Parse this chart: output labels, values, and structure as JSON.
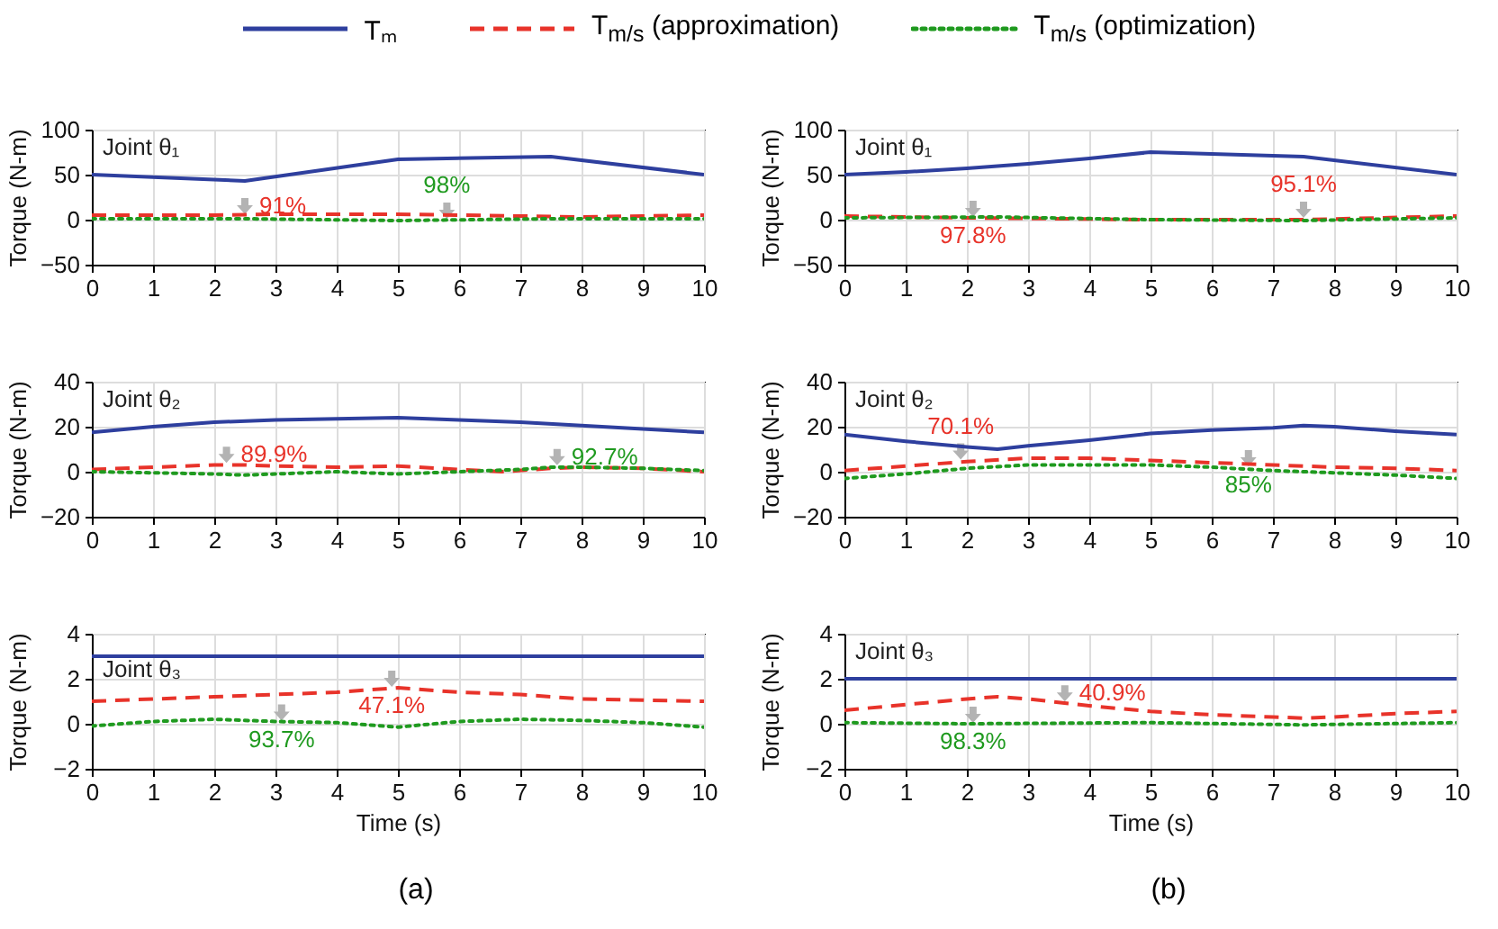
{
  "chart_data": [
    {
      "type": "line",
      "title": "Joint θ₁",
      "ylabel": "Torque (N-m)",
      "xlim": [
        0,
        10
      ],
      "xticks": [
        0,
        1,
        2,
        3,
        4,
        5,
        6,
        7,
        8,
        9,
        10
      ],
      "ylim": [
        -50,
        100
      ],
      "yticks": [
        -50,
        0,
        50,
        100
      ],
      "grid": true,
      "legend": "top",
      "series": [
        {
          "name": "Tₘ",
          "color": "#2e3f9e",
          "line_style": "solid",
          "x": [
            0,
            2.5,
            5,
            7.5,
            10
          ],
          "values": [
            50,
            43,
            67,
            70,
            50
          ]
        },
        {
          "name": "T$_{m/s}$ (approximation)",
          "color": "#e8332a",
          "line_style": "dashed",
          "x": [
            0,
            1,
            2,
            3,
            4,
            5,
            6,
            7,
            8,
            9,
            10
          ],
          "values": [
            5,
            5,
            5,
            6,
            6,
            6,
            5,
            4,
            3,
            4,
            5
          ]
        },
        {
          "name": "T$_{m/s}$ (optimization)",
          "color": "#1f9a1f",
          "line_style": "dotted",
          "x": [
            0,
            2.5,
            5,
            7.5,
            10
          ],
          "values": [
            1,
            1,
            -1,
            1,
            1
          ]
        }
      ],
      "annotations": [
        {
          "text": "91%",
          "x": 2.5,
          "y": 5
        },
        {
          "text": "98%",
          "x": 5.8,
          "y": 0
        }
      ]
    },
    {
      "type": "line",
      "title": "Joint θ₁",
      "ylabel": "Torque (N-m)",
      "xlim": [
        0,
        10
      ],
      "xticks": [
        0,
        1,
        2,
        3,
        4,
        5,
        6,
        7,
        8,
        9,
        10
      ],
      "ylim": [
        -50,
        100
      ],
      "yticks": [
        -50,
        0,
        50,
        100
      ],
      "grid": true,
      "series": [
        {
          "color": "#2e3f9e",
          "line_style": "solid",
          "x": [
            0,
            1,
            2,
            3,
            4,
            5,
            7.5,
            10
          ],
          "values": [
            50,
            53,
            57,
            62,
            68,
            75,
            70,
            50
          ]
        },
        {
          "color": "#e8332a",
          "line_style": "dashed",
          "x": [
            0,
            2,
            5,
            7.5,
            10
          ],
          "values": [
            4,
            2,
            0,
            0,
            4
          ]
        },
        {
          "color": "#1f9a1f",
          "line_style": "dotted",
          "x": [
            0,
            2.5,
            5,
            7.5,
            10
          ],
          "values": [
            2,
            3,
            0,
            -1,
            2
          ]
        }
      ],
      "annotations": [
        {
          "text": "97.8%",
          "x": 2.1,
          "y": 2
        },
        {
          "text": "95.1%",
          "x": 7.5,
          "y": 1
        }
      ]
    },
    {
      "type": "line",
      "title": "Joint θ₂",
      "ylabel": "Torque (N-m)",
      "xlim": [
        0,
        10
      ],
      "xticks": [
        0,
        1,
        2,
        3,
        4,
        5,
        6,
        7,
        8,
        9,
        10
      ],
      "ylim": [
        -20,
        40
      ],
      "yticks": [
        -20,
        0,
        20,
        40
      ],
      "grid": true,
      "series": [
        {
          "color": "#2e3f9e",
          "line_style": "solid",
          "x": [
            0,
            1,
            2,
            3,
            4,
            5,
            6,
            7,
            8,
            9,
            10
          ],
          "values": [
            17.5,
            20,
            22,
            23,
            23.5,
            24,
            23,
            22,
            20.5,
            19,
            17.5
          ]
        },
        {
          "color": "#e8332a",
          "line_style": "dashed",
          "x": [
            0,
            1,
            2,
            2.5,
            3,
            4,
            5,
            6,
            6.7,
            7.5,
            8,
            9,
            10
          ],
          "values": [
            1,
            2,
            3,
            3,
            2.5,
            2,
            2.5,
            1,
            0,
            1.5,
            2,
            1.5,
            0
          ]
        },
        {
          "color": "#1f9a1f",
          "line_style": "dotted",
          "x": [
            0,
            1,
            2,
            2.5,
            3,
            4,
            5,
            6,
            7,
            7.5,
            8,
            9,
            10
          ],
          "values": [
            0,
            -0.5,
            -1,
            -1.5,
            -1,
            0,
            -1,
            0,
            1,
            2,
            2,
            1.5,
            0.5
          ]
        }
      ],
      "annotations": [
        {
          "text": "89.9%",
          "x": 2.2,
          "y": 3.5
        },
        {
          "text": "92.7%",
          "x": 7.6,
          "y": 2.5
        }
      ]
    },
    {
      "type": "line",
      "title": "Joint θ₂",
      "ylabel": "Torque (N-m)",
      "xlim": [
        0,
        10
      ],
      "xticks": [
        0,
        1,
        2,
        3,
        4,
        5,
        6,
        7,
        8,
        9,
        10
      ],
      "ylim": [
        -20,
        40
      ],
      "yticks": [
        -20,
        0,
        20,
        40
      ],
      "grid": true,
      "series": [
        {
          "color": "#2e3f9e",
          "line_style": "solid",
          "x": [
            0,
            1,
            2,
            2.5,
            3,
            4,
            5,
            6,
            7,
            7.5,
            8,
            9,
            10
          ],
          "values": [
            16.5,
            13.5,
            11,
            10,
            11.5,
            14,
            17,
            18.5,
            19.5,
            20.5,
            20,
            18,
            16.5
          ]
        },
        {
          "color": "#e8332a",
          "line_style": "dashed",
          "x": [
            0,
            1,
            2,
            3,
            4,
            5,
            6,
            7,
            8,
            9,
            10
          ],
          "values": [
            0.5,
            2.5,
            4.5,
            6,
            6,
            5,
            4,
            3,
            2,
            1.5,
            0.5
          ]
        },
        {
          "color": "#1f9a1f",
          "line_style": "dotted",
          "x": [
            0,
            1,
            2,
            3,
            4,
            5,
            6,
            7,
            8,
            9,
            10
          ],
          "values": [
            -3,
            -1,
            1.5,
            3,
            3,
            3,
            2,
            0.5,
            -0.5,
            -1.5,
            -3
          ]
        }
      ],
      "annotations": [
        {
          "text": "70.1%",
          "x": 1.9,
          "y": 5
        },
        {
          "text": "85%",
          "x": 6.6,
          "y": 2
        }
      ]
    },
    {
      "type": "line",
      "title": "Joint θ₃",
      "xlabel": "Time (s)",
      "ylabel": "Torque (N-m)",
      "xlim": [
        0,
        10
      ],
      "xticks": [
        0,
        1,
        2,
        3,
        4,
        5,
        6,
        7,
        8,
        9,
        10
      ],
      "ylim": [
        -2,
        4
      ],
      "yticks": [
        -2,
        0,
        2,
        4
      ],
      "grid": true,
      "series": [
        {
          "color": "#2e3f9e",
          "line_style": "solid",
          "x": [
            0,
            10
          ],
          "values": [
            3,
            3
          ]
        },
        {
          "color": "#e8332a",
          "line_style": "dashed",
          "x": [
            0,
            1,
            2,
            3,
            4,
            5,
            6,
            7,
            8,
            9,
            10
          ],
          "values": [
            1,
            1.1,
            1.2,
            1.3,
            1.4,
            1.6,
            1.4,
            1.3,
            1.1,
            1.05,
            1
          ]
        },
        {
          "color": "#1f9a1f",
          "line_style": "dotted",
          "x": [
            0,
            1,
            2,
            3,
            4,
            5,
            6,
            7,
            8,
            9,
            10
          ],
          "values": [
            -0.1,
            0.1,
            0.2,
            0.1,
            0.05,
            -0.15,
            0.1,
            0.2,
            0.15,
            0.05,
            -0.15
          ]
        }
      ],
      "annotations": [
        {
          "text": "47.1%",
          "x": 4.9,
          "y": 1.6
        },
        {
          "text": "93.7%",
          "x": 3.1,
          "y": 0.1
        },
        "(a)"
      ]
    },
    {
      "type": "line",
      "title": "Joint θ₃",
      "xlabel": "Time (s)",
      "ylabel": "Torque (N-m)",
      "xlim": [
        0,
        10
      ],
      "xticks": [
        0,
        1,
        2,
        3,
        4,
        5,
        6,
        7,
        8,
        9,
        10
      ],
      "ylim": [
        -2,
        4
      ],
      "yticks": [
        -2,
        0,
        2,
        4
      ],
      "grid": true,
      "series": [
        {
          "color": "#2e3f9e",
          "line_style": "solid",
          "x": [
            0,
            10
          ],
          "values": [
            2,
            2
          ]
        },
        {
          "color": "#e8332a",
          "line_style": "dashed",
          "x": [
            0,
            1,
            2,
            2.5,
            3,
            4,
            5,
            6,
            7,
            7.5,
            8,
            9,
            10
          ],
          "values": [
            0.6,
            0.85,
            1.1,
            1.2,
            1.1,
            0.8,
            0.55,
            0.4,
            0.3,
            0.25,
            0.3,
            0.45,
            0.55
          ]
        },
        {
          "color": "#1f9a1f",
          "line_style": "dotted",
          "x": [
            0,
            2,
            5,
            7.5,
            10
          ],
          "values": [
            0.05,
            0,
            0.05,
            -0.05,
            0.05
          ]
        }
      ],
      "annotations": [
        {
          "text": "40.9%",
          "x": 3.6,
          "y": 0.95
        },
        {
          "text": "98.3%",
          "x": 2.1,
          "y": 0
        },
        "(b)"
      ]
    }
  ]
}
